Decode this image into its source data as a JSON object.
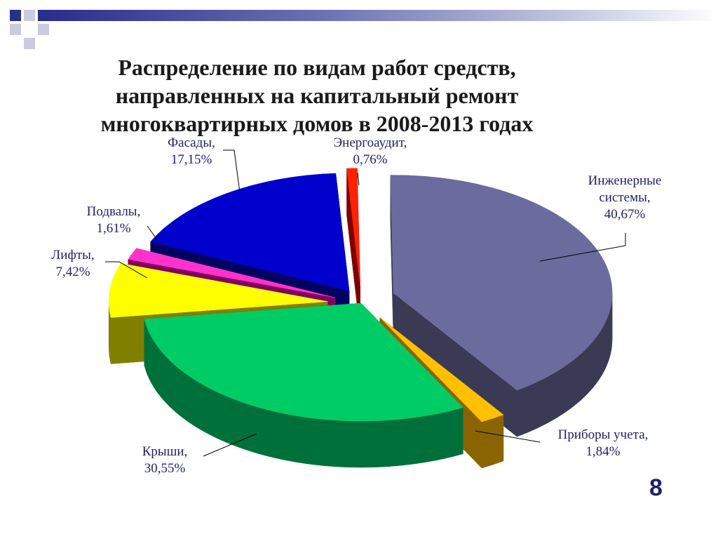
{
  "slide": {
    "title_lines": [
      "Распределение по видам работ средств,",
      "направленных на капитальный ремонт",
      "многоквартирных домов в 2008-2013 годах"
    ],
    "page_number": "8"
  },
  "colors": {
    "accent": "#2b2f8c",
    "label_text": "#1f1f6e"
  },
  "chart_data": {
    "type": "pie",
    "title": "Распределение по видам работ средств, направленных на капитальный ремонт многоквартирных домов в 2008-2013 годах",
    "unit": "%",
    "slices": [
      {
        "name": "Инженерные системы",
        "value": 40.67,
        "label_lines": [
          "Инженерные",
          "системы,",
          "40,67%"
        ],
        "color": "#6b6b9e",
        "side": "#3a3a54"
      },
      {
        "name": "Приборы учета",
        "value": 1.84,
        "label_lines": [
          "Приборы учета,",
          "1,84%"
        ],
        "color": "#ffc000",
        "side": "#8a6400"
      },
      {
        "name": "Крыши",
        "value": 30.55,
        "label_lines": [
          "Крыши,",
          "30,55%"
        ],
        "color": "#00cc66",
        "side": "#00703a"
      },
      {
        "name": "Лифты",
        "value": 7.42,
        "label_lines": [
          "Лифты,",
          "7,42%"
        ],
        "color": "#ffff00",
        "side": "#808000"
      },
      {
        "name": "Подвалы",
        "value": 1.61,
        "label_lines": [
          "Подвалы,",
          "1,61%"
        ],
        "color": "#ff33cc",
        "side": "#800060"
      },
      {
        "name": "Фасады",
        "value": 17.15,
        "label_lines": [
          "Фасады,",
          "17,15%"
        ],
        "color": "#0000cc",
        "side": "#000060"
      },
      {
        "name": "Энергоаудит",
        "value": 0.76,
        "label_lines": [
          "Энергоаудит,",
          "0,76%"
        ],
        "color": "#ff2200",
        "side": "#800000"
      }
    ],
    "legend": "none",
    "style": "3d-exploded"
  }
}
